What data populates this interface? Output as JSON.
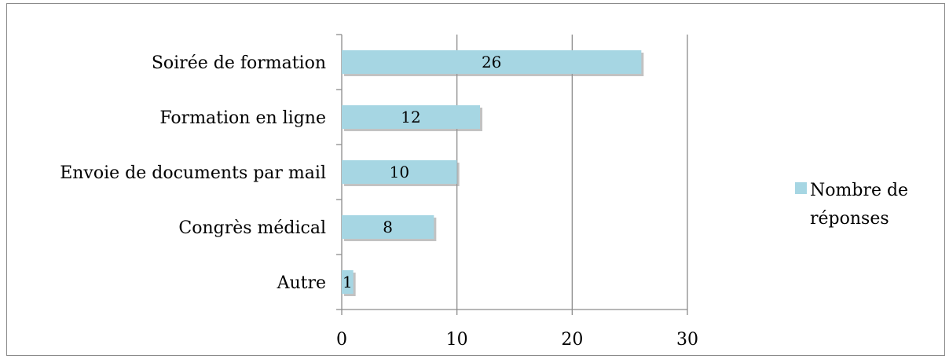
{
  "chart_data": {
    "type": "bar",
    "orientation": "horizontal",
    "categories": [
      "Soirée de formation",
      "Formation en ligne",
      "Envoie de documents par mail",
      "Congrès médical",
      "Autre"
    ],
    "series": [
      {
        "name": "Nombre de réponses",
        "values": [
          26,
          12,
          10,
          8,
          1
        ],
        "color": "#a6d6e3"
      }
    ],
    "xlim": [
      0,
      30
    ],
    "x_ticks": [
      0,
      10,
      20,
      30
    ],
    "grid": "vertical",
    "legend_position": "right",
    "legend_lines": [
      "Nombre de",
      "réponses"
    ]
  }
}
